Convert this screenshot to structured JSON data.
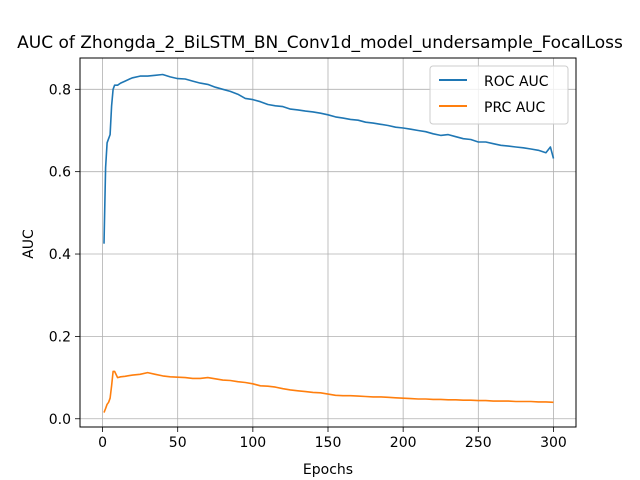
{
  "chart_data": {
    "type": "line",
    "title": "AUC of Zhongda_2_BiLSTM_BN_Conv1d_model_undersample_FocalLoss",
    "xlabel": "Epochs",
    "ylabel": "AUC",
    "xlim": [
      -15,
      315
    ],
    "ylim": [
      -0.02,
      0.876
    ],
    "grid": true,
    "legend_position": "top-right",
    "xticks": [
      0,
      50,
      100,
      150,
      200,
      250,
      300
    ],
    "yticks": [
      0.0,
      0.2,
      0.4,
      0.6,
      0.8
    ],
    "series": [
      {
        "name": "ROC AUC",
        "color": "#1f77b4",
        "points": [
          [
            1,
            0.425
          ],
          [
            2,
            0.61
          ],
          [
            3,
            0.67
          ],
          [
            4,
            0.68
          ],
          [
            5,
            0.69
          ],
          [
            6,
            0.76
          ],
          [
            7,
            0.8
          ],
          [
            8,
            0.81
          ],
          [
            10,
            0.81
          ],
          [
            12,
            0.815
          ],
          [
            15,
            0.82
          ],
          [
            18,
            0.825
          ],
          [
            20,
            0.828
          ],
          [
            25,
            0.832
          ],
          [
            30,
            0.832
          ],
          [
            35,
            0.834
          ],
          [
            40,
            0.836
          ],
          [
            45,
            0.83
          ],
          [
            50,
            0.826
          ],
          [
            55,
            0.825
          ],
          [
            60,
            0.82
          ],
          [
            65,
            0.815
          ],
          [
            70,
            0.812
          ],
          [
            75,
            0.805
          ],
          [
            80,
            0.8
          ],
          [
            85,
            0.795
          ],
          [
            90,
            0.788
          ],
          [
            95,
            0.778
          ],
          [
            100,
            0.775
          ],
          [
            105,
            0.77
          ],
          [
            110,
            0.763
          ],
          [
            115,
            0.76
          ],
          [
            120,
            0.758
          ],
          [
            125,
            0.752
          ],
          [
            130,
            0.75
          ],
          [
            135,
            0.747
          ],
          [
            140,
            0.745
          ],
          [
            145,
            0.742
          ],
          [
            150,
            0.738
          ],
          [
            155,
            0.733
          ],
          [
            160,
            0.73
          ],
          [
            165,
            0.727
          ],
          [
            170,
            0.725
          ],
          [
            175,
            0.72
          ],
          [
            180,
            0.718
          ],
          [
            185,
            0.715
          ],
          [
            190,
            0.712
          ],
          [
            195,
            0.708
          ],
          [
            200,
            0.706
          ],
          [
            205,
            0.703
          ],
          [
            210,
            0.7
          ],
          [
            215,
            0.697
          ],
          [
            220,
            0.692
          ],
          [
            225,
            0.688
          ],
          [
            230,
            0.69
          ],
          [
            235,
            0.685
          ],
          [
            240,
            0.68
          ],
          [
            245,
            0.678
          ],
          [
            250,
            0.672
          ],
          [
            255,
            0.672
          ],
          [
            260,
            0.668
          ],
          [
            265,
            0.664
          ],
          [
            270,
            0.662
          ],
          [
            275,
            0.66
          ],
          [
            280,
            0.658
          ],
          [
            285,
            0.655
          ],
          [
            290,
            0.652
          ],
          [
            295,
            0.646
          ],
          [
            298,
            0.66
          ],
          [
            300,
            0.632
          ]
        ]
      },
      {
        "name": "PRC AUC",
        "color": "#ff7f0e",
        "points": [
          [
            1,
            0.015
          ],
          [
            2,
            0.025
          ],
          [
            3,
            0.035
          ],
          [
            4,
            0.04
          ],
          [
            5,
            0.05
          ],
          [
            6,
            0.08
          ],
          [
            7,
            0.115
          ],
          [
            8,
            0.115
          ],
          [
            10,
            0.1
          ],
          [
            12,
            0.102
          ],
          [
            15,
            0.103
          ],
          [
            20,
            0.106
          ],
          [
            25,
            0.108
          ],
          [
            30,
            0.112
          ],
          [
            35,
            0.108
          ],
          [
            40,
            0.104
          ],
          [
            45,
            0.102
          ],
          [
            50,
            0.101
          ],
          [
            55,
            0.1
          ],
          [
            60,
            0.098
          ],
          [
            65,
            0.098
          ],
          [
            70,
            0.1
          ],
          [
            75,
            0.097
          ],
          [
            80,
            0.094
          ],
          [
            85,
            0.093
          ],
          [
            90,
            0.09
          ],
          [
            95,
            0.088
          ],
          [
            100,
            0.085
          ],
          [
            105,
            0.08
          ],
          [
            110,
            0.079
          ],
          [
            115,
            0.077
          ],
          [
            120,
            0.073
          ],
          [
            125,
            0.07
          ],
          [
            130,
            0.068
          ],
          [
            135,
            0.066
          ],
          [
            140,
            0.064
          ],
          [
            145,
            0.063
          ],
          [
            150,
            0.06
          ],
          [
            155,
            0.057
          ],
          [
            160,
            0.056
          ],
          [
            165,
            0.056
          ],
          [
            170,
            0.055
          ],
          [
            175,
            0.054
          ],
          [
            180,
            0.053
          ],
          [
            185,
            0.053
          ],
          [
            190,
            0.052
          ],
          [
            195,
            0.051
          ],
          [
            200,
            0.05
          ],
          [
            205,
            0.049
          ],
          [
            210,
            0.048
          ],
          [
            215,
            0.048
          ],
          [
            220,
            0.047
          ],
          [
            225,
            0.047
          ],
          [
            230,
            0.046
          ],
          [
            235,
            0.046
          ],
          [
            240,
            0.045
          ],
          [
            245,
            0.045
          ],
          [
            250,
            0.044
          ],
          [
            255,
            0.044
          ],
          [
            260,
            0.043
          ],
          [
            265,
            0.043
          ],
          [
            270,
            0.043
          ],
          [
            275,
            0.042
          ],
          [
            280,
            0.042
          ],
          [
            285,
            0.042
          ],
          [
            290,
            0.041
          ],
          [
            295,
            0.041
          ],
          [
            300,
            0.04
          ]
        ]
      }
    ]
  }
}
